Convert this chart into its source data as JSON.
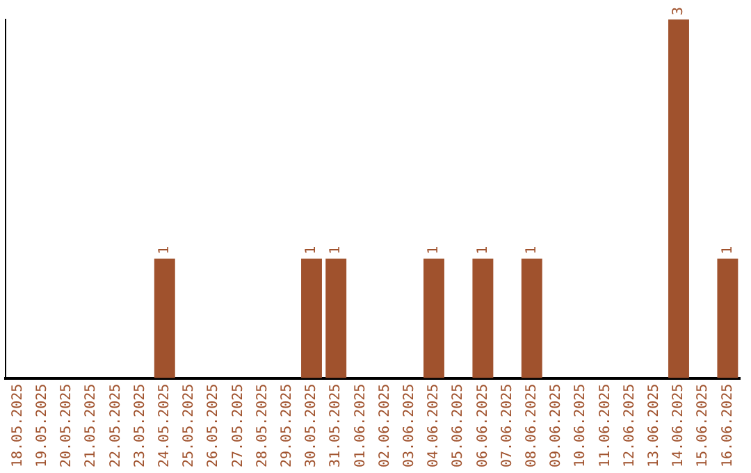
{
  "chart_data": {
    "type": "bar",
    "categories": [
      "18.05.2025",
      "19.05.2025",
      "20.05.2025",
      "21.05.2025",
      "22.05.2025",
      "23.05.2025",
      "24.05.2025",
      "25.05.2025",
      "26.05.2025",
      "27.05.2025",
      "28.05.2025",
      "29.05.2025",
      "30.05.2025",
      "31.05.2025",
      "01.06.2025",
      "02.06.2025",
      "03.06.2025",
      "04.06.2025",
      "05.06.2025",
      "06.06.2025",
      "07.06.2025",
      "08.06.2025",
      "09.06.2025",
      "10.06.2025",
      "11.06.2025",
      "12.06.2025",
      "13.06.2025",
      "14.06.2025",
      "15.06.2025",
      "16.06.2025"
    ],
    "values": [
      0,
      0,
      0,
      0,
      0,
      0,
      1,
      0,
      0,
      0,
      0,
      0,
      1,
      1,
      0,
      0,
      0,
      1,
      0,
      1,
      0,
      1,
      0,
      0,
      0,
      0,
      0,
      3,
      0,
      1
    ],
    "value_labels": [
      null,
      null,
      null,
      null,
      null,
      null,
      "1",
      null,
      null,
      null,
      null,
      null,
      "1",
      "1",
      null,
      null,
      null,
      "1",
      null,
      "1",
      null,
      "1",
      null,
      null,
      null,
      null,
      null,
      "3",
      null,
      "1"
    ],
    "color": "#a0522d",
    "ylim": [
      0,
      3
    ],
    "tick_labels": "x",
    "grid": false,
    "legend": false
  }
}
